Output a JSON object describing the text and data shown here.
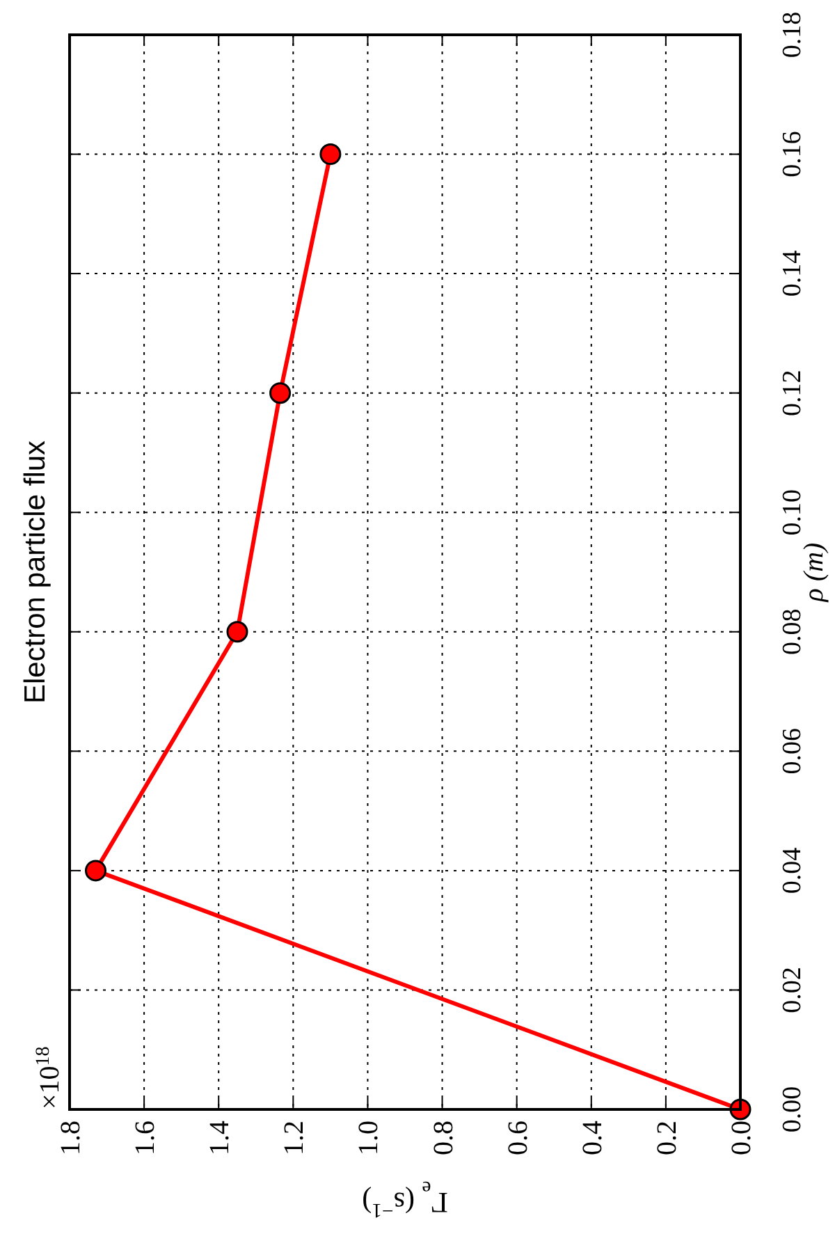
{
  "chart_data": {
    "type": "line",
    "title": "Electron particle flux",
    "xlabel": "Γ$_{e}$ (s$^{−1}$)",
    "ylabel": "ρ (m)",
    "annotations": [
      "×10$^{18}$"
    ],
    "x": [
      0,
      1.73,
      1.35,
      1.235,
      1.1
    ],
    "series": [
      {
        "color": "#ff0000",
        "values": [
          0,
          0.04,
          0.08,
          0.12,
          0.16
        ]
      }
    ],
    "xlim": [
      1.8,
      0
    ],
    "xticks": [
      {
        "value": 0,
        "label": "0.0"
      },
      0.2,
      0.4,
      0.6,
      0.8,
      {
        "value": 1,
        "label": "1.0"
      },
      1.2,
      1.4,
      1.6,
      1.8
    ],
    "ylim": [
      0,
      0.18
    ],
    "yticks": [
      {
        "value": 0,
        "label": "0.00"
      },
      0.02,
      0.04,
      0.06,
      0.08,
      {
        "value": 0.1,
        "label": "0.10"
      },
      0.12,
      0.14,
      0.16,
      0.18
    ],
    "grid": true,
    "marker": "circle",
    "line_style": "solid"
  }
}
